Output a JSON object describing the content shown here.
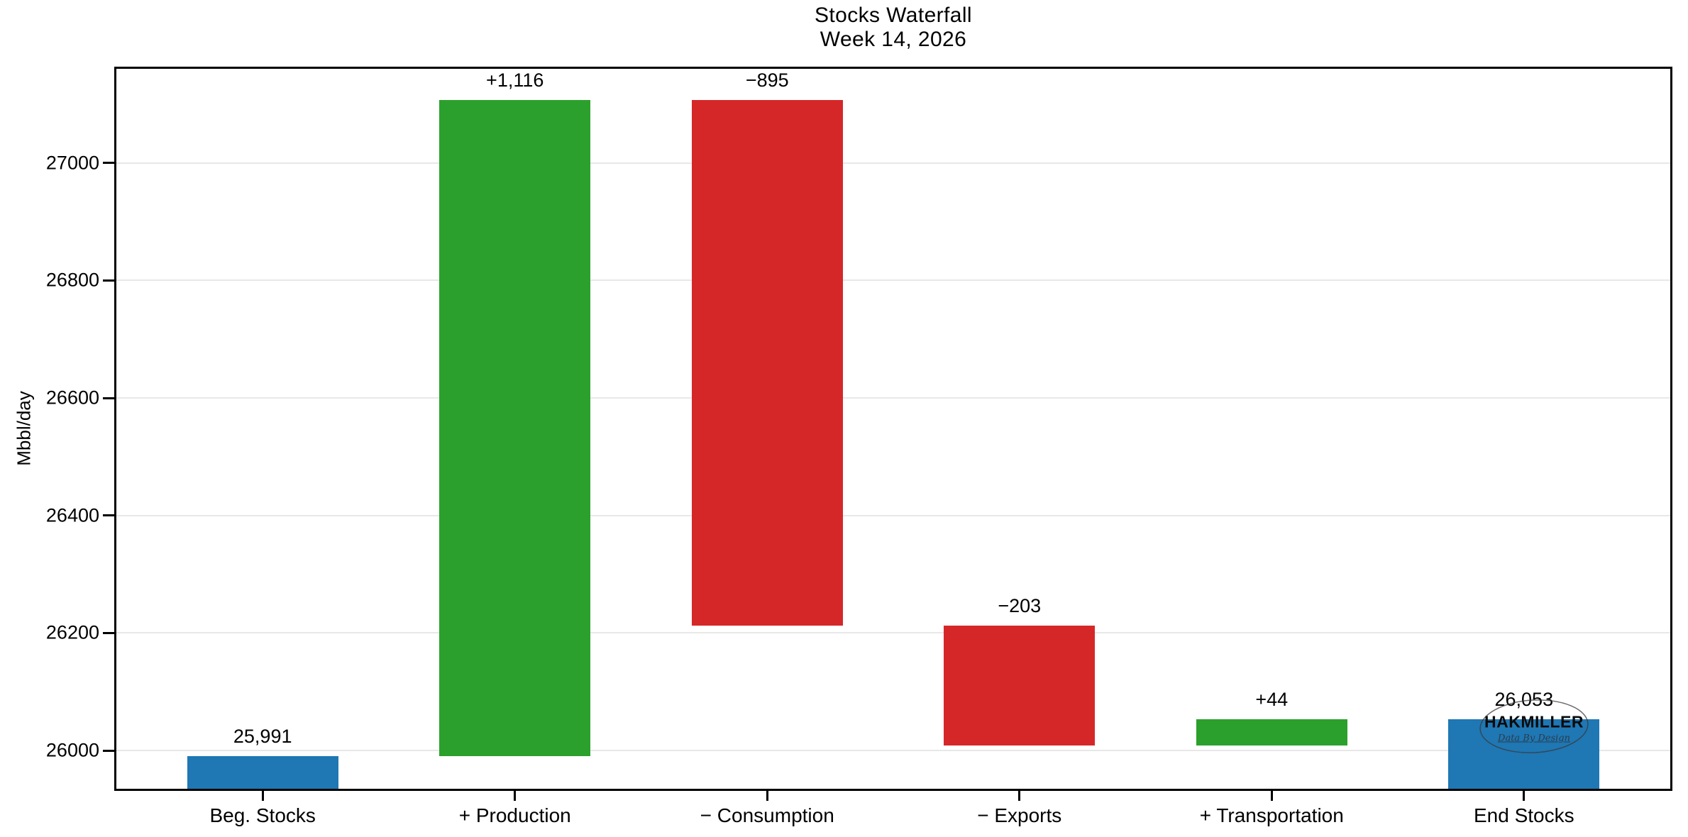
{
  "title": {
    "line1": "Stocks Waterfall",
    "line2": "Week 14, 2026"
  },
  "watermark": {
    "name": "HAKMILLER",
    "tagline": "Data By Design"
  },
  "chart_data": {
    "type": "bar",
    "subtype": "waterfall",
    "title": "Stocks Waterfall",
    "subtitle": "Week 14, 2026",
    "xlabel": "",
    "ylabel": "Mbbl/day",
    "ylim": [
      25935,
      27160
    ],
    "yticks": [
      26000,
      26200,
      26400,
      26600,
      26800,
      27000
    ],
    "grid": "horizontal-only",
    "legend": "none",
    "colors": {
      "total": "#1f77b4",
      "increase": "#2ca02c",
      "decrease": "#d62728"
    },
    "categories": [
      "Beg. Stocks",
      "+ Production",
      "− Consumption",
      "− Exports",
      "+ Transportation",
      "End Stocks"
    ],
    "bars": [
      {
        "category": "Beg. Stocks",
        "kind": "total",
        "from": null,
        "to": 25991,
        "value": 25991,
        "label": "25,991"
      },
      {
        "category": "+ Production",
        "kind": "increase",
        "from": 25991,
        "to": 27107,
        "value": 1116,
        "label": "+1,116"
      },
      {
        "category": "− Consumption",
        "kind": "decrease",
        "from": 27107,
        "to": 26212,
        "value": -895,
        "label": "−895"
      },
      {
        "category": "− Exports",
        "kind": "decrease",
        "from": 26212,
        "to": 26009,
        "value": -203,
        "label": "−203"
      },
      {
        "category": "+ Transportation",
        "kind": "increase",
        "from": 26009,
        "to": 26053,
        "value": 44,
        "label": "+44"
      },
      {
        "category": "End Stocks",
        "kind": "total",
        "from": null,
        "to": 26053,
        "value": 26053,
        "label": "26,053"
      }
    ]
  }
}
